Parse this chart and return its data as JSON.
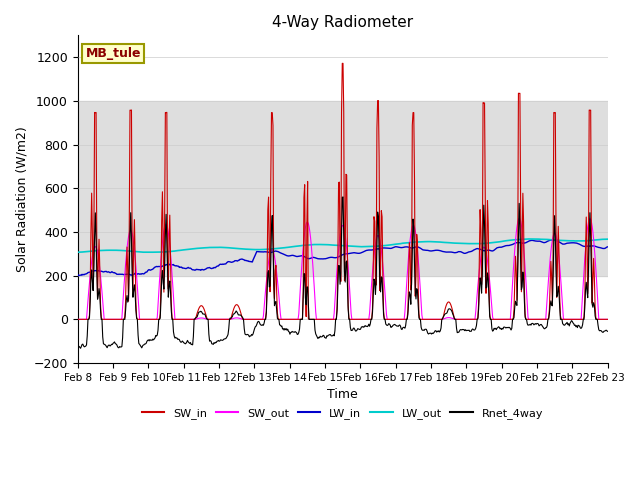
{
  "title": "4-Way Radiometer",
  "xlabel": "Time",
  "ylabel": "Solar Radiation (W/m2)",
  "ylim": [
    -200,
    1300
  ],
  "yticks": [
    -200,
    0,
    200,
    400,
    600,
    800,
    1000,
    1200
  ],
  "label_box": "MB_tule",
  "legend_labels": [
    "SW_in",
    "SW_out",
    "LW_in",
    "LW_out",
    "Rnet_4way"
  ],
  "legend_colors": [
    "#cc0000",
    "#ff00ff",
    "#0000cc",
    "#00cccc",
    "#000000"
  ],
  "shaded_region": [
    200,
    1000
  ],
  "shaded_color": "#dedede",
  "background_color": "#ffffff",
  "n_days": 15,
  "start_day": 8
}
